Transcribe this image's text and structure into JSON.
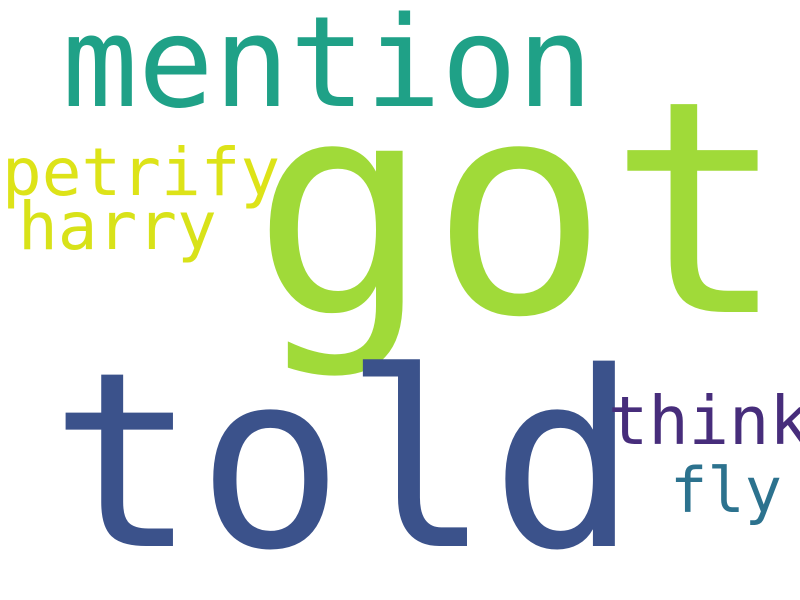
{
  "wordcloud": {
    "words": [
      {
        "text": "got",
        "color": "#a0da39"
      },
      {
        "text": "told",
        "color": "#3b528b"
      },
      {
        "text": "mention",
        "color": "#1fa187"
      },
      {
        "text": "think",
        "color": "#472d7b"
      },
      {
        "text": "petrify",
        "color": "#dde318"
      },
      {
        "text": "harry",
        "color": "#d8e219"
      },
      {
        "text": "fly",
        "color": "#2c728e"
      }
    ]
  }
}
